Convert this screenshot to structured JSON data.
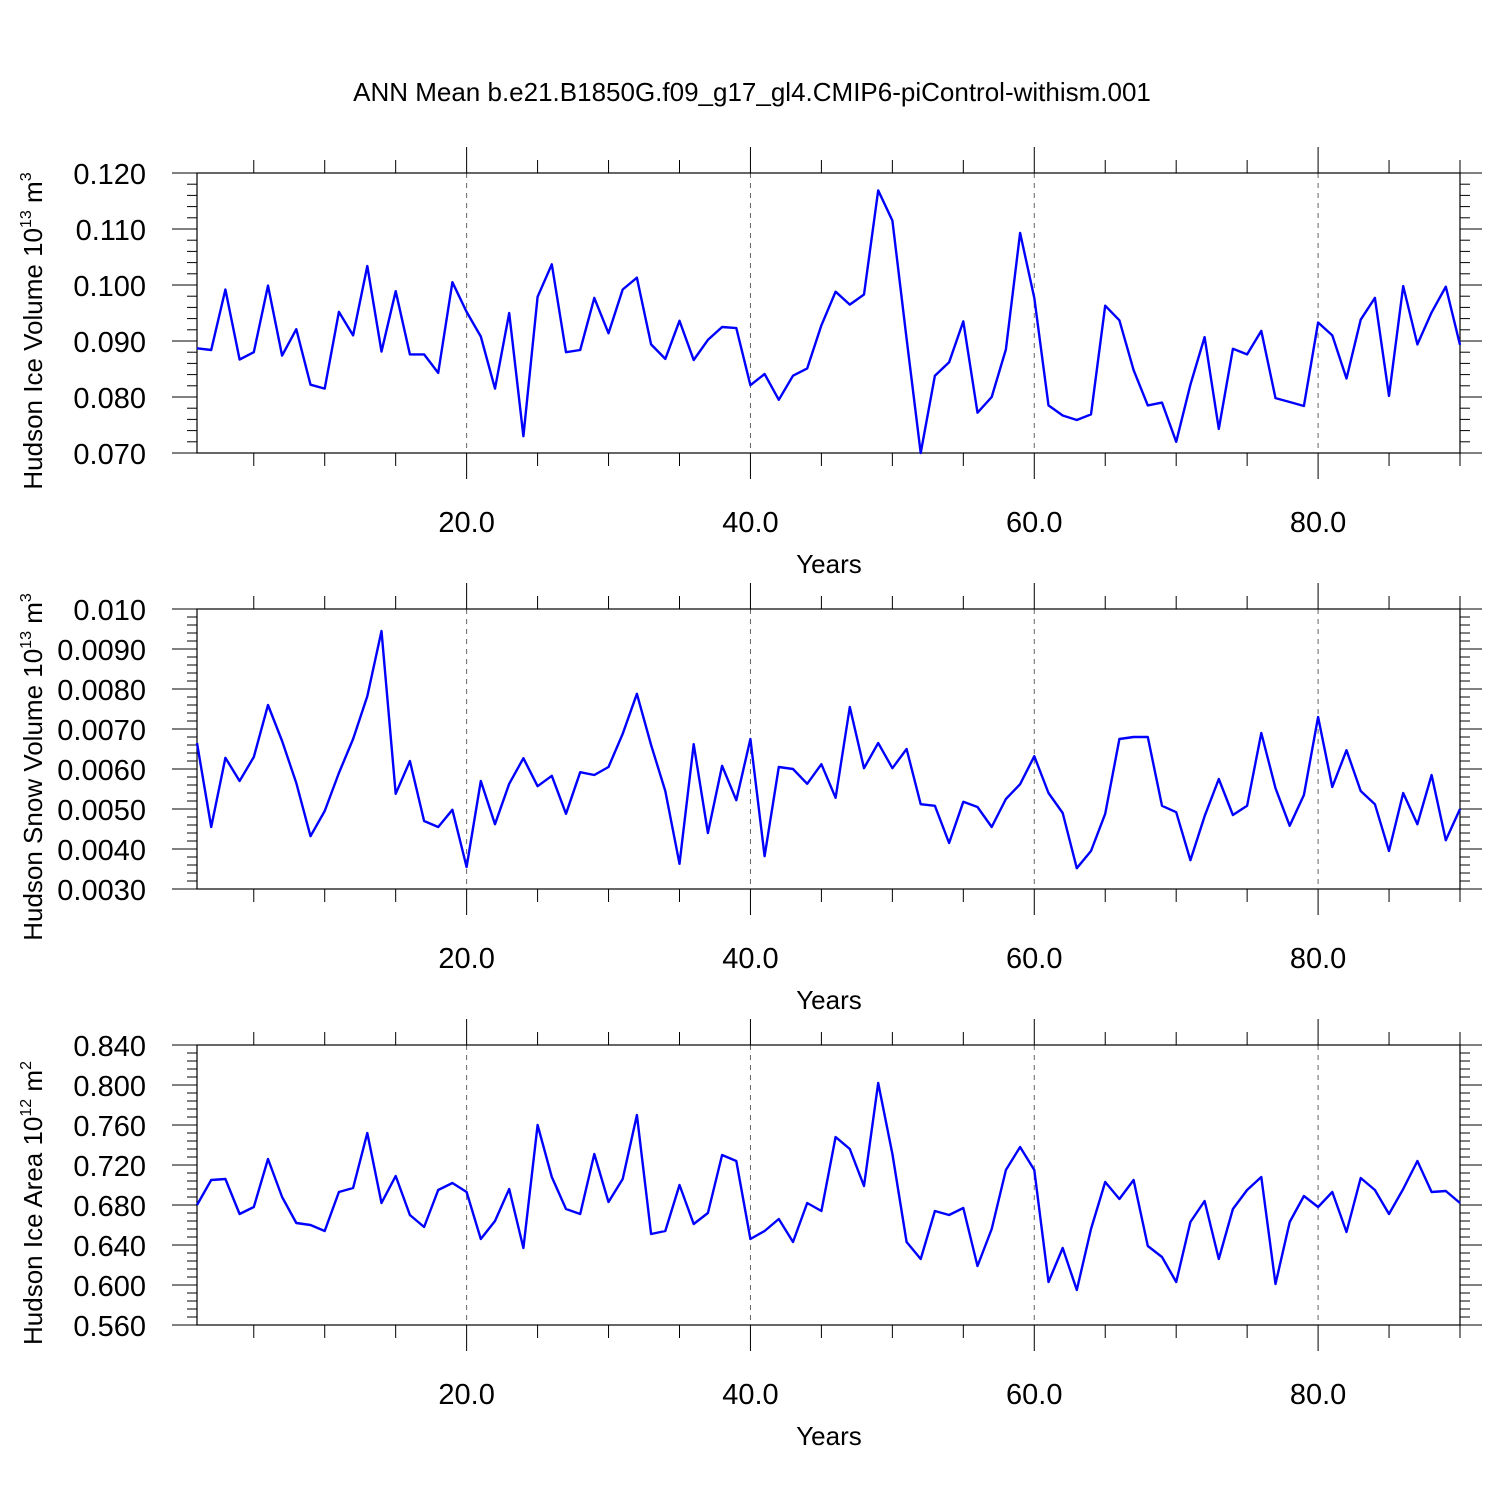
{
  "title": "ANN Mean b.e21.B1850G.f09_g17_gl4.CMIP6-piControl-withism.001",
  "colors": {
    "line": "#0000ff",
    "axis": "#000000"
  },
  "chart_data": [
    {
      "type": "line",
      "ylabel": {
        "main": "Hudson Ice Volume 10",
        "sup": "13",
        "unit": " m",
        "unit_sup": "3"
      },
      "xlabel": "Years",
      "xlim": [
        1,
        90
      ],
      "ylim": [
        0.07,
        0.12
      ],
      "xticks": [
        20,
        40,
        60,
        80
      ],
      "xtick_labels": [
        "20.0",
        "40.0",
        "60.0",
        "80.0"
      ],
      "yticks": [
        0.07,
        0.08,
        0.09,
        0.1,
        0.11,
        0.12
      ],
      "ytick_labels": [
        "0.070",
        "0.080",
        "0.090",
        "0.100",
        "0.110",
        "0.120"
      ],
      "grid_x": true,
      "series": [
        {
          "x": [
            1,
            2,
            3,
            4,
            5,
            6,
            7,
            8,
            9,
            10,
            11,
            12,
            13,
            14,
            15,
            16,
            17,
            18,
            19,
            20,
            21,
            22,
            23,
            24,
            25,
            26,
            27,
            28,
            29,
            30,
            31,
            32,
            33,
            34,
            35,
            36,
            37,
            38,
            39,
            40,
            41,
            42,
            43,
            44,
            45,
            46,
            47,
            48,
            49,
            50,
            51,
            52,
            53,
            54,
            55,
            56,
            57,
            58,
            59,
            60,
            61,
            62,
            63,
            64,
            65,
            66,
            67,
            68,
            69,
            70,
            71,
            72,
            73,
            74,
            75,
            76,
            77,
            78,
            79,
            80,
            81,
            82,
            83,
            84,
            85,
            86,
            87,
            88,
            89,
            90
          ],
          "values": [
            0.0887,
            0.0884,
            0.0992,
            0.0867,
            0.088,
            0.0999,
            0.0874,
            0.0921,
            0.0822,
            0.0815,
            0.0952,
            0.091,
            0.1034,
            0.0881,
            0.0989,
            0.0876,
            0.0876,
            0.0843,
            0.1005,
            0.0952,
            0.0908,
            0.0815,
            0.095,
            0.073,
            0.0979,
            0.1037,
            0.088,
            0.0884,
            0.0977,
            0.0914,
            0.0992,
            0.1013,
            0.0894,
            0.0868,
            0.0936,
            0.0866,
            0.0902,
            0.0925,
            0.0923,
            0.0821,
            0.0841,
            0.0795,
            0.0838,
            0.0851,
            0.0928,
            0.0988,
            0.0965,
            0.0983,
            0.1169,
            0.1115,
            0.0904,
            0.07,
            0.0838,
            0.0862,
            0.0935,
            0.0772,
            0.08,
            0.0885,
            0.1093,
            0.0977,
            0.0785,
            0.0767,
            0.0759,
            0.0769,
            0.0963,
            0.0937,
            0.0848,
            0.0785,
            0.079,
            0.072,
            0.0822,
            0.0907,
            0.0743,
            0.0886,
            0.0876,
            0.0918,
            0.0798,
            0.0791,
            0.0784,
            0.0933,
            0.091,
            0.0833,
            0.0938,
            0.0977,
            0.0802,
            0.0998,
            0.0894,
            0.0951,
            0.0997,
            0.0893
          ]
        }
      ]
    },
    {
      "type": "line",
      "ylabel": {
        "main": "Hudson Snow Volume 10",
        "sup": "13",
        "unit": " m",
        "unit_sup": "3"
      },
      "xlabel": "Years",
      "xlim": [
        1,
        90
      ],
      "ylim": [
        0.003,
        0.01
      ],
      "xticks": [
        20,
        40,
        60,
        80
      ],
      "xtick_labels": [
        "20.0",
        "40.0",
        "60.0",
        "80.0"
      ],
      "yticks": [
        0.003,
        0.004,
        0.005,
        0.006,
        0.007,
        0.008,
        0.009,
        0.01
      ],
      "ytick_labels": [
        "0.0030",
        "0.0040",
        "0.0050",
        "0.0060",
        "0.0070",
        "0.0080",
        "0.0090",
        "0.010"
      ],
      "grid_x": true,
      "series": [
        {
          "x": [
            1,
            2,
            3,
            4,
            5,
            6,
            7,
            8,
            9,
            10,
            11,
            12,
            13,
            14,
            15,
            16,
            17,
            18,
            19,
            20,
            21,
            22,
            23,
            24,
            25,
            26,
            27,
            28,
            29,
            30,
            31,
            32,
            33,
            34,
            35,
            36,
            37,
            38,
            39,
            40,
            41,
            42,
            43,
            44,
            45,
            46,
            47,
            48,
            49,
            50,
            51,
            52,
            53,
            54,
            55,
            56,
            57,
            58,
            59,
            60,
            61,
            62,
            63,
            64,
            65,
            66,
            67,
            68,
            69,
            70,
            71,
            72,
            73,
            74,
            75,
            76,
            77,
            78,
            79,
            80,
            81,
            82,
            83,
            84,
            85,
            86,
            87,
            88,
            89,
            90
          ],
          "values": [
            0.00665,
            0.00455,
            0.00628,
            0.0057,
            0.0063,
            0.0076,
            0.0067,
            0.00565,
            0.00432,
            0.00495,
            0.0059,
            0.00675,
            0.00782,
            0.00945,
            0.00538,
            0.0062,
            0.0047,
            0.00455,
            0.00498,
            0.00355,
            0.0057,
            0.00462,
            0.00563,
            0.00627,
            0.00557,
            0.00583,
            0.00488,
            0.00592,
            0.00585,
            0.00605,
            0.00688,
            0.00788,
            0.0066,
            0.00545,
            0.00363,
            0.00662,
            0.0044,
            0.00608,
            0.00522,
            0.00675,
            0.00382,
            0.00605,
            0.006,
            0.00563,
            0.00612,
            0.00528,
            0.00755,
            0.00602,
            0.00665,
            0.00602,
            0.0065,
            0.00512,
            0.00508,
            0.00415,
            0.00518,
            0.00505,
            0.00455,
            0.00525,
            0.00562,
            0.00632,
            0.0054,
            0.0049,
            0.00352,
            0.00395,
            0.00488,
            0.00675,
            0.0068,
            0.0068,
            0.00508,
            0.00492,
            0.00372,
            0.00482,
            0.00575,
            0.00485,
            0.00508,
            0.0069,
            0.00552,
            0.00458,
            0.00535,
            0.0073,
            0.00555,
            0.00647,
            0.00545,
            0.00512,
            0.00395,
            0.0054,
            0.00462,
            0.00585,
            0.00422,
            0.005
          ]
        }
      ]
    },
    {
      "type": "line",
      "ylabel": {
        "main": "Hudson Ice Area 10",
        "sup": "12",
        "unit": " m",
        "unit_sup": "2"
      },
      "xlabel": "Years",
      "xlim": [
        1,
        90
      ],
      "ylim": [
        0.56,
        0.84
      ],
      "xticks": [
        20,
        40,
        60,
        80
      ],
      "xtick_labels": [
        "20.0",
        "40.0",
        "60.0",
        "80.0"
      ],
      "yticks": [
        0.56,
        0.6,
        0.64,
        0.68,
        0.72,
        0.76,
        0.8,
        0.84
      ],
      "ytick_labels": [
        "0.560",
        "0.600",
        "0.640",
        "0.680",
        "0.720",
        "0.760",
        "0.800",
        "0.840"
      ],
      "grid_x": true,
      "series": [
        {
          "x": [
            1,
            2,
            3,
            4,
            5,
            6,
            7,
            8,
            9,
            10,
            11,
            12,
            13,
            14,
            15,
            16,
            17,
            18,
            19,
            20,
            21,
            22,
            23,
            24,
            25,
            26,
            27,
            28,
            29,
            30,
            31,
            32,
            33,
            34,
            35,
            36,
            37,
            38,
            39,
            40,
            41,
            42,
            43,
            44,
            45,
            46,
            47,
            48,
            49,
            50,
            51,
            52,
            53,
            54,
            55,
            56,
            57,
            58,
            59,
            60,
            61,
            62,
            63,
            64,
            65,
            66,
            67,
            68,
            69,
            70,
            71,
            72,
            73,
            74,
            75,
            76,
            77,
            78,
            79,
            80,
            81,
            82,
            83,
            84,
            85,
            86,
            87,
            88,
            89,
            90
          ],
          "values": [
            0.68,
            0.705,
            0.706,
            0.671,
            0.678,
            0.726,
            0.688,
            0.662,
            0.66,
            0.654,
            0.693,
            0.697,
            0.752,
            0.682,
            0.709,
            0.67,
            0.658,
            0.695,
            0.702,
            0.693,
            0.646,
            0.664,
            0.696,
            0.637,
            0.76,
            0.708,
            0.676,
            0.671,
            0.731,
            0.683,
            0.706,
            0.77,
            0.651,
            0.654,
            0.7,
            0.661,
            0.672,
            0.73,
            0.724,
            0.646,
            0.654,
            0.666,
            0.643,
            0.682,
            0.674,
            0.748,
            0.736,
            0.699,
            0.802,
            0.731,
            0.643,
            0.626,
            0.674,
            0.67,
            0.677,
            0.619,
            0.656,
            0.715,
            0.738,
            0.715,
            0.603,
            0.637,
            0.595,
            0.656,
            0.703,
            0.686,
            0.705,
            0.639,
            0.628,
            0.603,
            0.663,
            0.684,
            0.626,
            0.676,
            0.695,
            0.708,
            0.601,
            0.663,
            0.689,
            0.678,
            0.693,
            0.653,
            0.707,
            0.695,
            0.671,
            0.696,
            0.724,
            0.693,
            0.694,
            0.682
          ]
        }
      ]
    }
  ]
}
